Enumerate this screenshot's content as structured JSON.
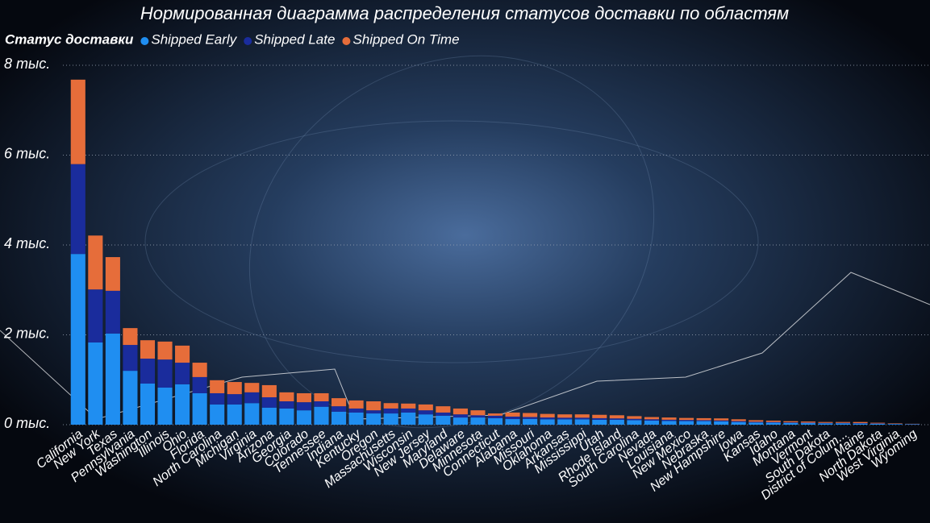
{
  "chart_data": {
    "type": "stacked_bar",
    "title": "Нормированная диаграмма распределения статусов доставки по областям",
    "legend_title": "Статус доставки",
    "categories": [
      "California",
      "New York",
      "Texas",
      "Pennsylvania",
      "Washington",
      "Illinois",
      "Ohio",
      "Florida",
      "North Carolina",
      "Michigan",
      "Virginia",
      "Arizona",
      "Georgia",
      "Colorado",
      "Tennessee",
      "Indiana",
      "Kentucky",
      "Oregon",
      "Massachusetts",
      "Wisconsin",
      "New Jersey",
      "Maryland",
      "Delaware",
      "Minnesota",
      "Connecticut",
      "Alabama",
      "Missouri",
      "Oklahoma",
      "Arkansas",
      "Mississippi",
      "Utah",
      "Rhode Island",
      "South Carolina",
      "Nevada",
      "Louisiana",
      "New Mexico",
      "Nebraska",
      "New Hampshire",
      "Iowa",
      "Kansas",
      "Idaho",
      "Montana",
      "Vermont",
      "South Dakota",
      "District of Colum...",
      "Maine",
      "North Dakota",
      "West Virginia",
      "Wyoming"
    ],
    "series": [
      {
        "name": "Shipped Early",
        "color": "#1f8ef1",
        "values": [
          3800,
          1830,
          2030,
          1200,
          915,
          825,
          900,
          700,
          450,
          450,
          480,
          380,
          360,
          320,
          400,
          290,
          270,
          250,
          250,
          270,
          230,
          200,
          160,
          160,
          145,
          125,
          130,
          120,
          120,
          120,
          110,
          110,
          100,
          90,
          85,
          80,
          80,
          75,
          60,
          50,
          45,
          40,
          35,
          30,
          30,
          25,
          20,
          15,
          10
        ]
      },
      {
        "name": "Shipped Late",
        "color": "#1a2c9c",
        "values": [
          2000,
          1180,
          950,
          575,
          555,
          625,
          480,
          360,
          250,
          230,
          240,
          230,
          160,
          180,
          120,
          120,
          90,
          70,
          110,
          90,
          90,
          70,
          70,
          50,
          55,
          55,
          40,
          40,
          35,
          35,
          35,
          30,
          30,
          30,
          25,
          25,
          20,
          20,
          20,
          15,
          15,
          12,
          10,
          10,
          10,
          10,
          8,
          5,
          5
        ]
      },
      {
        "name": "Shipped On Time",
        "color": "#e66d3a",
        "values": [
          1880,
          1200,
          750,
          375,
          410,
          400,
          380,
          320,
          290,
          270,
          210,
          270,
          200,
          200,
          180,
          180,
          180,
          200,
          120,
          110,
          130,
          140,
          130,
          110,
          50,
          90,
          90,
          80,
          75,
          75,
          75,
          70,
          60,
          50,
          50,
          45,
          45,
          45,
          40,
          35,
          30,
          25,
          25,
          20,
          20,
          25,
          15,
          10,
          5
        ]
      }
    ],
    "ylim": [
      0,
      8000
    ],
    "yticks": [
      {
        "value": 0,
        "label": "0 тыс."
      },
      {
        "value": 2000,
        "label": "2 тыс."
      },
      {
        "value": 4000,
        "label": "4 тыс."
      },
      {
        "value": 6000,
        "label": "6 тыс."
      },
      {
        "value": 8000,
        "label": "8 тыс."
      }
    ],
    "grid": true
  }
}
